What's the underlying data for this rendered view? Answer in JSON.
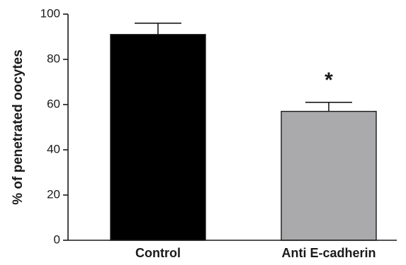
{
  "chart_data": {
    "type": "bar",
    "ylabel": "% of penetrated oocytes",
    "ylim": [
      0,
      100
    ],
    "yticks": [
      0,
      20,
      40,
      60,
      80,
      100
    ],
    "categories": [
      "Control",
      "Anti E-cadherin"
    ],
    "values": [
      91,
      57
    ],
    "errors": [
      5,
      4
    ],
    "bar_colors": [
      "#000000",
      "#aaaaac"
    ],
    "annotations": [
      "",
      "*"
    ]
  }
}
